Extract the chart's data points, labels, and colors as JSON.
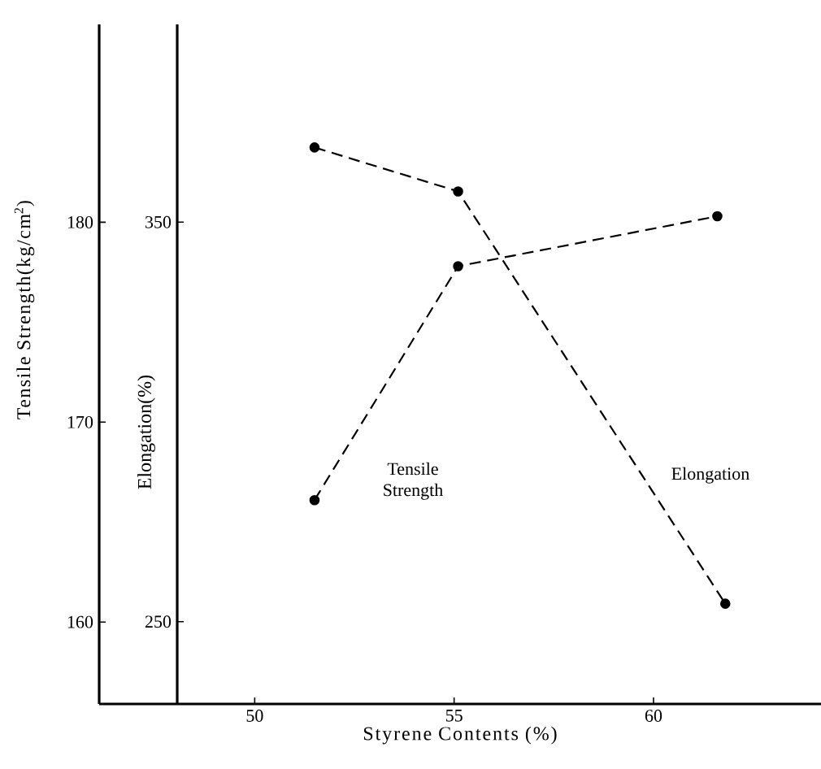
{
  "chart_data": {
    "type": "line",
    "xlabel": "Styrene Contents (%)",
    "ylabel": "Tensile Strength(kg/cm$^{2}$)",
    "y2label": "Elongation(%)",
    "xlim": [
      46.1,
      64.2
    ],
    "xticks": [
      50,
      55,
      60
    ],
    "ylim": [
      155.9,
      189.9
    ],
    "yticks": [
      160,
      170,
      180
    ],
    "y2lim": [
      229.4,
      399.5
    ],
    "y2ticks": [
      250,
      350
    ],
    "marker": "circle",
    "line_style": "dashed",
    "legend": false,
    "grid": false,
    "series": [
      {
        "name": "Tensile Strength",
        "color": "#000000",
        "x": [
          51.5,
          55.1,
          61.6
        ],
        "values": [
          166.1,
          177.8,
          180.3
        ]
      },
      {
        "name": "Elongation",
        "color": "#000000",
        "axis": "y2",
        "x": [
          51.5,
          55.1,
          61.8
        ],
        "values": [
          368.7,
          357.7,
          254.5
        ]
      }
    ]
  }
}
